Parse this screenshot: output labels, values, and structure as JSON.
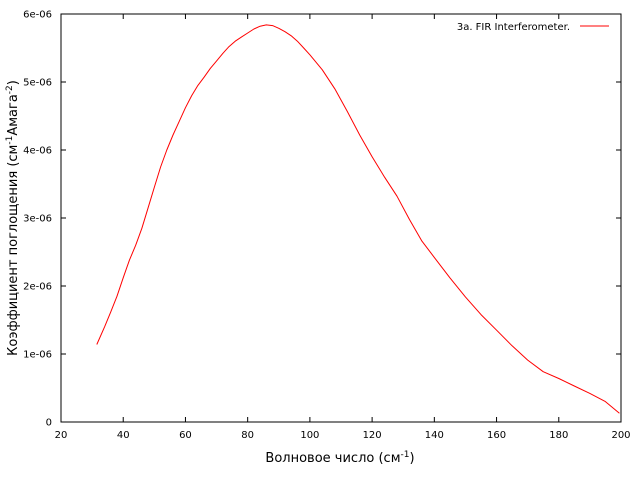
{
  "chart_data": {
    "type": "line",
    "title": "",
    "xlabel": "Волновое число (см",
    "xlabel_sup": "-1",
    "xlabel_tail": ")",
    "ylabel": "Коэффициент поглощения (см",
    "ylabel_sup1": "-1",
    "ylabel_mid": "Амага",
    "ylabel_sup2": "-2",
    "ylabel_tail": ")",
    "xlim": [
      20,
      200
    ],
    "ylim": [
      0,
      6e-06
    ],
    "x_ticks": [
      20,
      40,
      60,
      80,
      100,
      120,
      140,
      160,
      180,
      200
    ],
    "x_tick_labels": [
      "20",
      "40",
      "60",
      "80",
      "100",
      "120",
      "140",
      "160",
      "180",
      "200"
    ],
    "y_ticks": [
      0,
      1e-06,
      2e-06,
      3e-06,
      4e-06,
      5e-06,
      6e-06
    ],
    "y_tick_labels": [
      "0",
      "1e-06",
      "2e-06",
      "3e-06",
      "4e-06",
      "5e-06",
      "6e-06"
    ],
    "grid": false,
    "legend_position": "top-right",
    "series": [
      {
        "name": "3a. FIR Interferometer.",
        "color": "#ff0000",
        "x": [
          31.5,
          34,
          36,
          38,
          40,
          42,
          44,
          46,
          48,
          50,
          52,
          54,
          56,
          58,
          60,
          62,
          64,
          66,
          68,
          70,
          72,
          74,
          76,
          78,
          80,
          82,
          84,
          86,
          88,
          90,
          92,
          94,
          96,
          98,
          100,
          104,
          108,
          112,
          116,
          120,
          124,
          128,
          132,
          136,
          140,
          145,
          150,
          155,
          160,
          165,
          170,
          175,
          180,
          185,
          190,
          195,
          199.5
        ],
        "y": [
          1.14e-06,
          1.4e-06,
          1.62e-06,
          1.85e-06,
          2.12e-06,
          2.38e-06,
          2.6e-06,
          2.85e-06,
          3.15e-06,
          3.45e-06,
          3.75e-06,
          4e-06,
          4.22e-06,
          4.42e-06,
          4.62e-06,
          4.8e-06,
          4.95e-06,
          5.07e-06,
          5.2e-06,
          5.31e-06,
          5.42e-06,
          5.52e-06,
          5.6e-06,
          5.66e-06,
          5.72e-06,
          5.78e-06,
          5.82e-06,
          5.84e-06,
          5.83e-06,
          5.79e-06,
          5.74e-06,
          5.68e-06,
          5.6e-06,
          5.5e-06,
          5.4e-06,
          5.18e-06,
          4.9e-06,
          4.57e-06,
          4.22e-06,
          3.9e-06,
          3.6e-06,
          3.32e-06,
          2.98e-06,
          2.66e-06,
          2.42e-06,
          2.12e-06,
          1.84e-06,
          1.58e-06,
          1.35e-06,
          1.12e-06,
          9.1e-07,
          7.4e-07,
          6.4e-07,
          5.3e-07,
          4.2e-07,
          3e-07,
          1.3e-07
        ]
      }
    ]
  }
}
